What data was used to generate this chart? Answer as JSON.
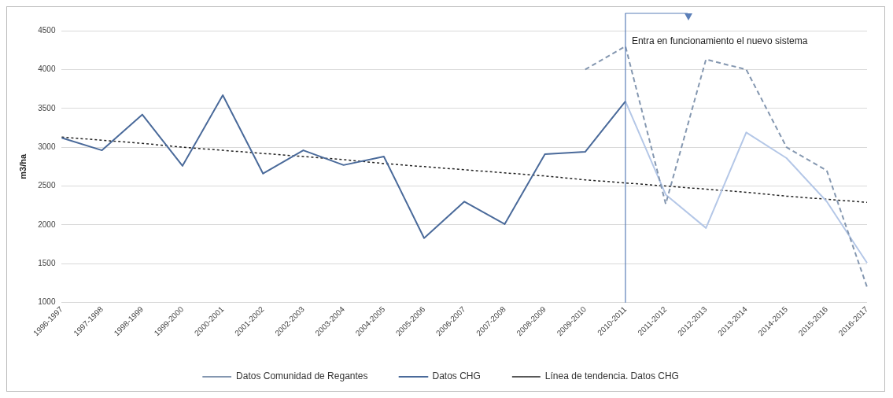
{
  "chart_data": {
    "type": "line",
    "categories": [
      "1996-1997",
      "1997-1998",
      "1998-1999",
      "1999-2000",
      "2000-2001",
      "2001-2002",
      "2002-2003",
      "2003-2004",
      "2004-2005",
      "2005-2006",
      "2006-2007",
      "2007-2008",
      "2008-2009",
      "2009-2010",
      "2010-2011",
      "2011-2012",
      "2012-2013",
      "2013-2014",
      "2014-2015",
      "2015-2016",
      "2016-2017"
    ],
    "ylabel": "m3/ha",
    "ylim": [
      1000,
      4500
    ],
    "yticks": [
      1000,
      1500,
      2000,
      2500,
      3000,
      3500,
      4000,
      4500
    ],
    "grid": "y",
    "legend": "bottom",
    "marker": "none",
    "series": [
      {
        "name": "Datos Comunidad de Regantes",
        "color": "#8497b0",
        "line_style": "dashed",
        "values": [
          null,
          null,
          null,
          null,
          null,
          null,
          null,
          null,
          null,
          null,
          null,
          null,
          null,
          4000,
          4300,
          2270,
          4130,
          4000,
          3000,
          2700,
          1200
        ]
      },
      {
        "name": "Datos CHG",
        "color": "#4a6a9a",
        "line_style": "solid",
        "values": [
          3120,
          2960,
          3420,
          2760,
          3670,
          2660,
          2960,
          2770,
          2880,
          1830,
          2300,
          2010,
          2910,
          2940,
          3590,
          null,
          null,
          null,
          null,
          null,
          null
        ]
      },
      {
        "color": "#b4c7e7",
        "line_style": "solid",
        "values": [
          null,
          null,
          null,
          null,
          null,
          null,
          null,
          null,
          null,
          null,
          null,
          null,
          null,
          null,
          3590,
          2390,
          1960,
          3190,
          2860,
          2300,
          1510
        ]
      },
      {
        "name": "Línea de tendencia. Datos CHG",
        "color": "#222222",
        "line_style": "dotted",
        "values": [
          3130,
          3090,
          3050,
          3000,
          2960,
          2920,
          2880,
          2840,
          2790,
          2750,
          2710,
          2670,
          2630,
          2580,
          2540,
          2500,
          2460,
          2420,
          2370,
          2330,
          2290
        ]
      }
    ],
    "ref_lines": [
      {
        "axis": "x",
        "value": "2010-2011",
        "color": "#5b7fb8"
      }
    ],
    "annotations": [
      {
        "text": "Entra en funcionamiento el nuevo sistema",
        "x": "2010-2011"
      }
    ]
  }
}
